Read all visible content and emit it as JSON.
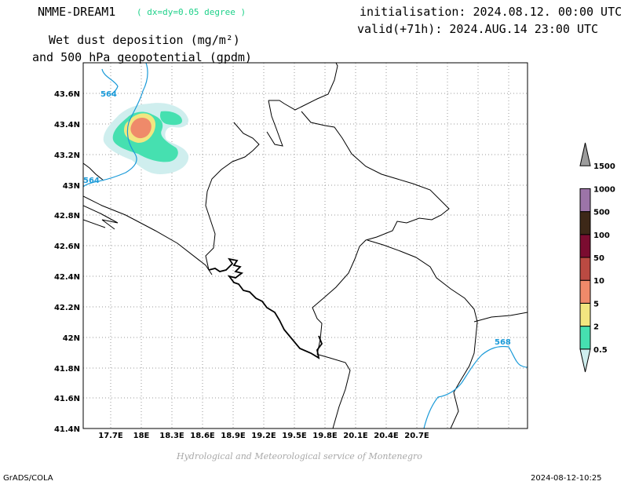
{
  "header": {
    "model": "NMME-DREAM1",
    "resolution": "( dx=dy=0.05 degree )",
    "initialisation": "initialisation: 2024.08.12. 00:00 UTC",
    "valid": "valid(+71h): 2024.AUG.14 23:00 UTC",
    "title_line1": "Wet dust deposition (mg/m²)",
    "title_line2": "and 500 hPa geopotential (gpdm)"
  },
  "footer": {
    "credit": "Hydrological and Meteorological service of Montenegro",
    "software": "GrADS/COLA",
    "timestamp": "2024-08-12-10:25"
  },
  "map": {
    "lon_labels": [
      "17.7E",
      "18E",
      "18.3E",
      "18.6E",
      "18.9E",
      "19.2E",
      "19.5E",
      "19.8E",
      "20.1E",
      "20.4E",
      "20.7E"
    ],
    "lat_labels": [
      "43.6N",
      "43.4N",
      "43.2N",
      "43N",
      "42.8N",
      "42.6N",
      "42.4N",
      "42.2N",
      "42N",
      "41.8N",
      "41.6N",
      "41.4N"
    ],
    "contour_labels": [
      "564",
      "564",
      "568"
    ]
  },
  "legend": {
    "levels": [
      "0.5",
      "2",
      "5",
      "10",
      "50",
      "100",
      "500",
      "1000",
      "1500"
    ],
    "colors": [
      "#cfeeee",
      "#46e0b0",
      "#f2e680",
      "#ef8a6a",
      "#bb4a42",
      "#7b0c30",
      "#3d2818",
      "#9c74a8",
      "#9c9c9c"
    ]
  }
}
